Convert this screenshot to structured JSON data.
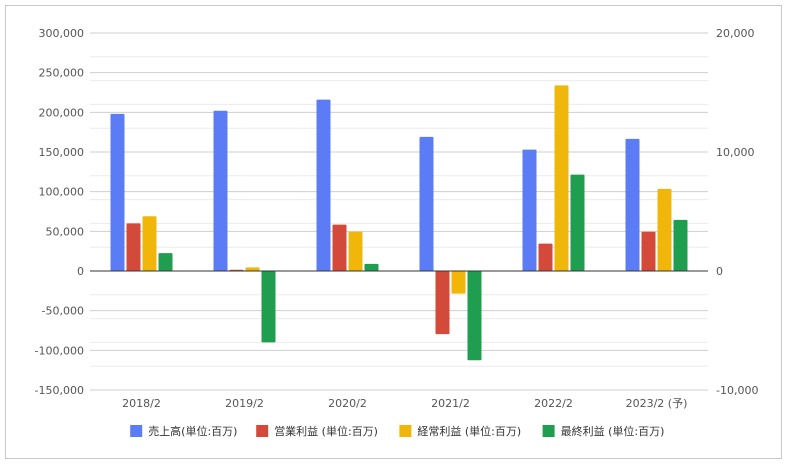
{
  "chart_data": {
    "type": "bar",
    "categories": [
      "2018/2",
      "2019/2",
      "2020/2",
      "2021/2",
      "2022/2",
      "2023/2 (予)"
    ],
    "series": [
      {
        "name": "売上高(単位:百万)",
        "axis": "left",
        "color": "#5b7cf5",
        "values": [
          198000,
          202000,
          216000,
          169000,
          153000,
          166500
        ]
      },
      {
        "name": "営業利益 (単位:百万)",
        "axis": "right",
        "color": "#d44a3a",
        "values": [
          4000,
          100,
          3900,
          -5300,
          2300,
          3300
        ]
      },
      {
        "name": "経常利益 (単位:百万)",
        "axis": "right",
        "color": "#f0b70a",
        "values": [
          4600,
          300,
          3300,
          -1900,
          15600,
          6900
        ]
      },
      {
        "name": "最終利益 (単位:百万)",
        "axis": "right",
        "color": "#1f9e4f",
        "values": [
          1500,
          -6000,
          600,
          -7500,
          8100,
          4300
        ]
      }
    ],
    "y_left": {
      "ylim": [
        -150000,
        300000
      ],
      "ticks": [
        "300,000",
        "250,000",
        "200,000",
        "150,000",
        "100,000",
        "50,000",
        "0",
        "-50,000",
        "-100,000",
        "-150,000"
      ]
    },
    "y_right": {
      "ylim": [
        -10000,
        20000
      ],
      "ticks": [
        "20,000",
        "10,000",
        "0",
        "-10,000"
      ]
    },
    "legend_position": "bottom",
    "grid": true
  }
}
